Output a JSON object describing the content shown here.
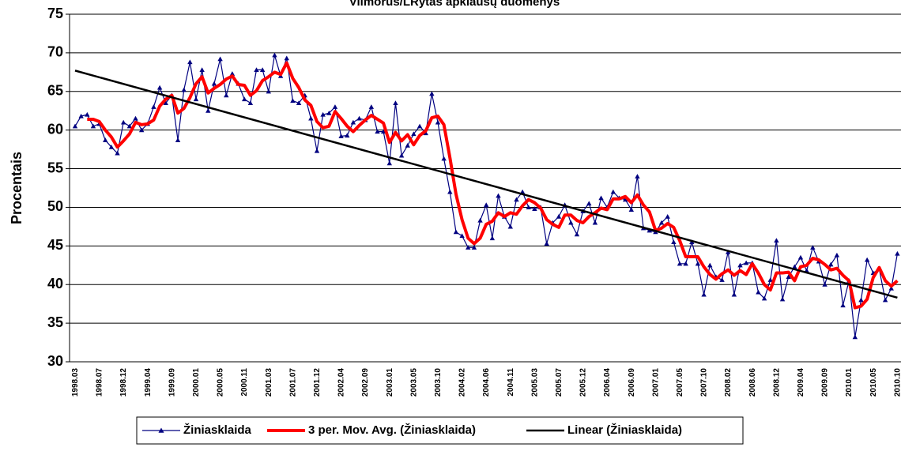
{
  "chart_data": {
    "type": "line",
    "title": "Vilmorus/LRytas apklausų duomenys",
    "y_label": "Procentais",
    "categories": [
      "1998.03",
      null,
      null,
      null,
      "1998.07",
      null,
      null,
      null,
      "1998.12",
      null,
      null,
      null,
      "1999.04",
      null,
      null,
      null,
      "1999.09",
      null,
      null,
      null,
      "2000.01",
      null,
      null,
      null,
      "2000.05",
      null,
      null,
      null,
      "2000.11",
      null,
      null,
      null,
      "2001.03",
      null,
      null,
      null,
      "2001.07",
      null,
      null,
      null,
      "2001.12",
      null,
      null,
      null,
      "2002.04",
      null,
      null,
      null,
      "2002.09",
      null,
      null,
      null,
      "2003.01",
      null,
      null,
      null,
      "2003.05",
      null,
      null,
      null,
      "2003.10",
      null,
      null,
      null,
      "2004.02",
      null,
      null,
      null,
      "2004.06",
      null,
      null,
      null,
      "2004.11",
      null,
      null,
      null,
      "2005.03",
      null,
      null,
      null,
      "2005.07",
      null,
      null,
      null,
      "2005.12",
      null,
      null,
      null,
      "2006.04",
      null,
      null,
      null,
      "2006.09",
      null,
      null,
      null,
      "2007.01",
      null,
      null,
      null,
      "2007.05",
      null,
      null,
      null,
      "2007.10",
      null,
      null,
      null,
      "2008.02",
      null,
      null,
      null,
      "2008.06",
      null,
      null,
      null,
      "2008.12",
      null,
      null,
      null,
      "2009.04",
      null,
      null,
      null,
      "2009.09",
      null,
      null,
      null,
      "2010.01",
      null,
      null,
      null,
      "2010.05",
      null,
      null,
      null,
      "2010.10"
    ],
    "series": [
      {
        "name": "Žiniasklaida",
        "color": "#000080",
        "marker": "triangle",
        "values": [
          60.5,
          61.8,
          62.0,
          60.5,
          60.8,
          58.7,
          57.8,
          57.0,
          61.0,
          60.5,
          61.5,
          60.0,
          60.8,
          63.0,
          65.5,
          63.5,
          64.5,
          58.7,
          65.2,
          68.8,
          64.0,
          67.8,
          62.5,
          66.0,
          69.2,
          64.5,
          67.3,
          66.0,
          64.0,
          63.5,
          67.8,
          67.8,
          65.0,
          69.7,
          67.0,
          69.3,
          63.8,
          63.5,
          64.5,
          61.5,
          57.3,
          62.0,
          62.2,
          63.0,
          59.2,
          59.3,
          61.0,
          61.5,
          61.3,
          63.0,
          59.8,
          59.8,
          55.7,
          63.5,
          56.7,
          58.0,
          59.5,
          60.5,
          59.6,
          64.7,
          61.0,
          56.3,
          52.0,
          46.8,
          46.3,
          44.8,
          44.8,
          48.3,
          50.3,
          46.0,
          51.5,
          48.8,
          47.5,
          51.0,
          52.0,
          50.0,
          49.8,
          50.0,
          45.3,
          48.0,
          48.8,
          50.3,
          48.0,
          46.5,
          49.5,
          50.5,
          48.0,
          51.2,
          50.0,
          52.0,
          51.2,
          51.0,
          49.7,
          54.0,
          47.3,
          47.0,
          46.8,
          48.0,
          48.8,
          45.5,
          42.7,
          42.7,
          45.5,
          42.7,
          38.7,
          42.5,
          41.0,
          40.6,
          44.2,
          38.7,
          42.5,
          42.8,
          42.8,
          39.0,
          38.2,
          40.6,
          45.7,
          38.1,
          41.0,
          42.3,
          43.5,
          41.8,
          44.8,
          43.0,
          40.0,
          42.6,
          43.8,
          37.3,
          40.5,
          33.2,
          38.0,
          43.2,
          41.5,
          42.0,
          38.0,
          39.5,
          44.0
        ]
      },
      {
        "name": "3 per. Mov. Avg. (Žiniasklaida)",
        "color": "#ff0000",
        "values": [
          null,
          null,
          61.4,
          61.4,
          61.1,
          60.0,
          59.1,
          57.8,
          58.6,
          59.5,
          61.0,
          60.7,
          60.8,
          61.3,
          63.1,
          64.0,
          64.5,
          62.2,
          62.8,
          64.2,
          66.0,
          66.9,
          64.8,
          65.4,
          65.9,
          66.6,
          67.0,
          65.9,
          65.8,
          64.5,
          65.1,
          66.4,
          66.9,
          67.5,
          67.2,
          68.7,
          66.7,
          65.5,
          63.9,
          63.2,
          61.1,
          60.3,
          60.5,
          62.4,
          61.5,
          60.5,
          59.8,
          60.6,
          61.3,
          61.9,
          61.4,
          60.9,
          58.4,
          59.7,
          58.6,
          59.4,
          58.1,
          59.3,
          59.9,
          61.6,
          61.8,
          60.7,
          56.4,
          51.7,
          48.4,
          46.0,
          45.3,
          46.0,
          47.8,
          48.2,
          49.3,
          48.8,
          49.3,
          49.1,
          50.2,
          51.0,
          50.6,
          49.9,
          48.4,
          47.8,
          47.4,
          49.0,
          49.0,
          48.3,
          48.0,
          48.8,
          49.3,
          49.9,
          49.7,
          51.1,
          51.1,
          51.4,
          50.6,
          51.6,
          50.3,
          49.4,
          47.0,
          47.3,
          47.9,
          47.4,
          45.7,
          43.6,
          43.6,
          43.6,
          42.3,
          41.3,
          40.7,
          41.4,
          41.9,
          41.2,
          41.8,
          41.3,
          42.7,
          41.5,
          40.0,
          39.3,
          41.5,
          41.5,
          41.6,
          40.5,
          42.3,
          42.5,
          43.4,
          43.2,
          42.6,
          41.9,
          42.1,
          41.2,
          40.5,
          37.0,
          37.2,
          38.1,
          40.9,
          42.2,
          40.5,
          39.8,
          40.5
        ]
      }
    ],
    "trendline": {
      "name": "Linear (Žiniasklaida)",
      "color": "#000000",
      "start": 67.7,
      "end": 38.3
    },
    "ylim": [
      30,
      75
    ],
    "yticks": [
      30,
      35,
      40,
      45,
      50,
      55,
      60,
      65,
      70,
      75
    ],
    "grid": true,
    "legend": "bottom"
  }
}
